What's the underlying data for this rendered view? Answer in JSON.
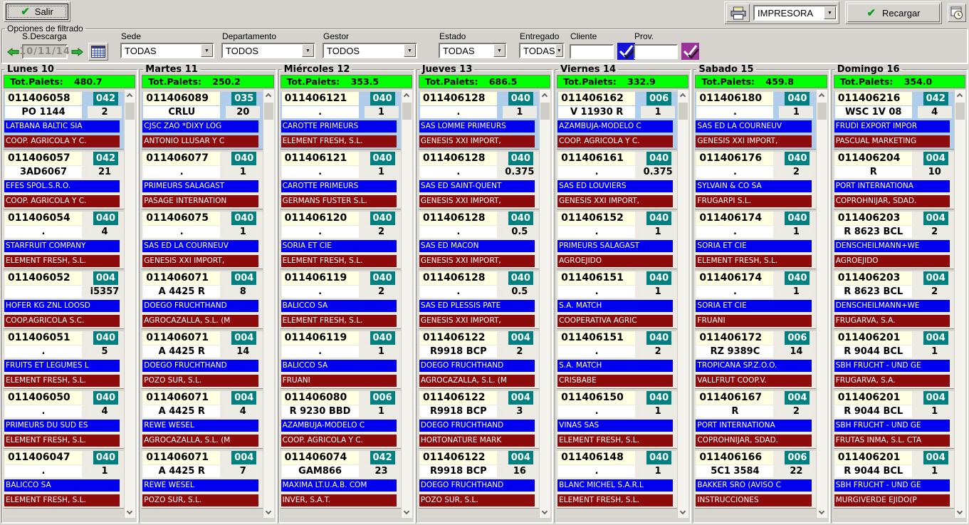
{
  "toolbar": {
    "salir": "Salir",
    "printer_value": "IMPRESORA",
    "recargar": "Recargar"
  },
  "filters": {
    "title": "Opciones de filtrado",
    "sdescarga_label": "S.Descarga",
    "sdescarga_value": "10/11/14",
    "sede_label": "Sede",
    "sede_value": "TODAS",
    "departamento_label": "Departamento",
    "departamento_value": "TODOS",
    "gestor_label": "Gestor",
    "gestor_value": "TODOS",
    "estado_label": "Estado",
    "estado_value": "TODAS",
    "entregado_label": "Entregado",
    "entregado_value": "TODAS",
    "cliente_label": "Cliente",
    "cliente_value": "",
    "prov_label": "Prov.",
    "prov_value": ""
  },
  "totals_label": "Tot.Palets:",
  "icons": {
    "salir": "green-checkmark",
    "recargar": "green-checkmark",
    "print": "printer",
    "schedule": "clock-window",
    "prev_day": "green-arrow-left",
    "next_day": "green-arrow-right",
    "calendar": "calendar-grid",
    "cliente_filter": "double-check-blue",
    "prov_filter": "double-check-purple",
    "combo": "chevron-down",
    "scroll_up": "chevron-up",
    "scroll_down": "chevron-down"
  },
  "colors": {
    "window_gray": "#d6d3ce",
    "total_green": "#00ff00",
    "badge_teal": "#008080",
    "client_blue": "#0000ee",
    "supplier_maroon": "#8e0b0b",
    "highlight_blue": "#b0cdec",
    "order_cream": "#ffffe1"
  },
  "columns": [
    {
      "day": "Lunes 10",
      "total": "480.7",
      "cards": [
        {
          "order": "011406058",
          "badge": "042",
          "code": "PO 1144",
          "qty": "2",
          "client": "LATBANA BALTIC SIA",
          "supplier": "COOP. AGRICOLA Y C.",
          "hl": true
        },
        {
          "order": "011406057",
          "badge": "042",
          "code": "3AD6067",
          "qty": "21",
          "client": "EFES SPOL.S.R.O.",
          "supplier": "COOP. AGRICOLA Y C.",
          "hl": false
        },
        {
          "order": "011406054",
          "badge": "040",
          "code": ".",
          "qty": "4",
          "client": "STARFRUIT COMPANY",
          "supplier": "ELEMENT FRESH, S.L.",
          "hl": false
        },
        {
          "order": "011406052",
          "badge": "004",
          "code": "",
          "qty": "i5357",
          "client": "HOFER KG ZNL LOOSD",
          "supplier": "COOP.AGRICOLA S.C.",
          "hl": false
        },
        {
          "order": "011406051",
          "badge": "040",
          "code": ".",
          "qty": "5",
          "client": "FRUITS ET LEGUMES L",
          "supplier": "ELEMENT FRESH, S.L.",
          "hl": false
        },
        {
          "order": "011406050",
          "badge": "040",
          "code": ".",
          "qty": "4",
          "client": "PRIMEURS DU SUD ES",
          "supplier": "ELEMENT FRESH, S.L.",
          "hl": false
        },
        {
          "order": "011406047",
          "badge": "040",
          "code": ".",
          "qty": "1",
          "client": "BALICCO SA",
          "supplier": "ELEMENT FRESH, S.L.",
          "hl": false
        }
      ]
    },
    {
      "day": "Martes 11",
      "total": "250.2",
      "cards": [
        {
          "order": "011406089",
          "badge": "035",
          "code": "CRLU",
          "qty": "20",
          "client": "CJSC ZAO *DIXY LOG",
          "supplier": "ANTONIO LLUSAR Y C",
          "hl": true
        },
        {
          "order": "011406077",
          "badge": "040",
          "code": ".",
          "qty": "1",
          "client": "PRIMEURS SALAGAST",
          "supplier": "PASAGE INTERNATION",
          "hl": false
        },
        {
          "order": "011406075",
          "badge": "040",
          "code": ".",
          "qty": "1",
          "client": "SAS ED LA COURNEUV",
          "supplier": "GENESIS XXI IMPORT,",
          "hl": false
        },
        {
          "order": "011406071",
          "badge": "004",
          "code": "A 4425 R",
          "qty": "8",
          "client": "DOEGO FRUCHTHAND",
          "supplier": "AGROCAZALLA, S.L. (M",
          "hl": false
        },
        {
          "order": "011406071",
          "badge": "004",
          "code": "A 4425 R",
          "qty": "14",
          "client": "DOEGO FRUCHTHAND",
          "supplier": "POZO SUR, S.L.",
          "hl": false
        },
        {
          "order": "011406071",
          "badge": "004",
          "code": "A 4425 R",
          "qty": "4",
          "client": "REWE WESEL",
          "supplier": "AGROCAZALLA, S.L. (M",
          "hl": false
        },
        {
          "order": "011406071",
          "badge": "004",
          "code": "A 4425 R",
          "qty": "7",
          "client": "REWE WESEL",
          "supplier": "POZO SUR, S.L.",
          "hl": false
        }
      ]
    },
    {
      "day": "Miércoles 12",
      "total": "353.5",
      "cards": [
        {
          "order": "011406121",
          "badge": "040",
          "code": ".",
          "qty": "1",
          "client": "CAROTTE PRIMEURS",
          "supplier": "ELEMENT FRESH, S.L.",
          "hl": true
        },
        {
          "order": "011406121",
          "badge": "040",
          "code": ".",
          "qty": "1",
          "client": "CAROTTE PRIMEURS",
          "supplier": "GERMANS FUSTER S.L.",
          "hl": false
        },
        {
          "order": "011406120",
          "badge": "040",
          "code": ".",
          "qty": "2",
          "client": "SORIA ET CIE",
          "supplier": "ELEMENT FRESH, S.L.",
          "hl": false
        },
        {
          "order": "011406119",
          "badge": "040",
          "code": ".",
          "qty": "2",
          "client": "BALICCO SA",
          "supplier": "ELEMENT FRESH, S.L.",
          "hl": false
        },
        {
          "order": "011406119",
          "badge": "040",
          "code": ".",
          "qty": "1",
          "client": "BALICCO SA",
          "supplier": "FRUANI",
          "hl": false
        },
        {
          "order": "011406080",
          "badge": "006",
          "code": "R 9230 BBD",
          "qty": "1",
          "client": "AZAMBUJA-MODELO C",
          "supplier": "COOP. AGRICOLA Y C.",
          "hl": false
        },
        {
          "order": "011406074",
          "badge": "042",
          "code": "GAM866",
          "qty": "23",
          "client": "MAXIMA LT.U.A.B. COM",
          "supplier": "INVER, S.A.T.",
          "hl": false
        }
      ]
    },
    {
      "day": "Jueves 13",
      "total": "686.5",
      "cards": [
        {
          "order": "011406128",
          "badge": "040",
          "code": ".",
          "qty": "1",
          "client": "SAS LOMME PRIMEURS",
          "supplier": "GENESIS XXI IMPORT,",
          "hl": true
        },
        {
          "order": "011406128",
          "badge": "040",
          "code": ".",
          "qty": "0.375",
          "client": "SAS ED SAINT-QUENT",
          "supplier": "GENESIS XXI IMPORT,",
          "hl": false
        },
        {
          "order": "011406128",
          "badge": "040",
          "code": ".",
          "qty": "0.5",
          "client": "SAS ED MACON",
          "supplier": "GENESIS XXI IMPORT,",
          "hl": false
        },
        {
          "order": "011406128",
          "badge": "040",
          "code": ".",
          "qty": "0.5",
          "client": "SAS ED PLESSIS PATE",
          "supplier": "GENESIS XXI IMPORT,",
          "hl": false
        },
        {
          "order": "011406122",
          "badge": "004",
          "code": "R9918 BCP",
          "qty": "2",
          "client": "DOEGO FRUCHTHAND",
          "supplier": "AGROCAZALLA, S.L. (M",
          "hl": false
        },
        {
          "order": "011406122",
          "badge": "004",
          "code": "R9918 BCP",
          "qty": "3",
          "client": "DOEGO FRUCHTHAND",
          "supplier": "HORTONATURE MARK",
          "hl": false
        },
        {
          "order": "011406122",
          "badge": "004",
          "code": "R9918 BCP",
          "qty": "16",
          "client": "DOEGO FRUCHTHAND",
          "supplier": "POZO SUR, S.L.",
          "hl": false
        }
      ]
    },
    {
      "day": "Viernes 14",
      "total": "332.9",
      "cards": [
        {
          "order": "011406162",
          "badge": "006",
          "code": "V 11930 R",
          "qty": "1",
          "client": "AZAMBUJA-MODELO C",
          "supplier": "COOP. AGRICOLA Y C.",
          "hl": true
        },
        {
          "order": "011406161",
          "badge": "040",
          "code": ".",
          "qty": "0.375",
          "client": "SAS ED LOUVIERS",
          "supplier": "GENESIS XXI IMPORT,",
          "hl": false
        },
        {
          "order": "011406152",
          "badge": "040",
          "code": ".",
          "qty": "1",
          "client": "PRIMEURS SALAGAST",
          "supplier": "AGROEJIDO",
          "hl": false
        },
        {
          "order": "011406151",
          "badge": "040",
          "code": ".",
          "qty": "1",
          "client": "S.A. MATCH",
          "supplier": "COOPERATIVA AGRIC",
          "hl": false
        },
        {
          "order": "011406151",
          "badge": "040",
          "code": ".",
          "qty": "2",
          "client": "S.A. MATCH",
          "supplier": "CRISBABE",
          "hl": false
        },
        {
          "order": "011406150",
          "badge": "040",
          "code": ".",
          "qty": "1",
          "client": "VINAS SAS",
          "supplier": "ELEMENT FRESH, S.L.",
          "hl": false
        },
        {
          "order": "011406148",
          "badge": "040",
          "code": ".",
          "qty": "1",
          "client": "BLANC MICHEL S.A.R.L",
          "supplier": "ELEMENT FRESH, S.L.",
          "hl": false
        }
      ]
    },
    {
      "day": "Sabado 15",
      "total": "459.8",
      "cards": [
        {
          "order": "011406180",
          "badge": "040",
          "code": ".",
          "qty": "1",
          "client": "SAS ED LA COURNEUV",
          "supplier": "GENESIS XXI IMPORT,",
          "hl": true
        },
        {
          "order": "011406176",
          "badge": "040",
          "code": ".",
          "qty": "2",
          "client": "SYLVAIN & CO SA",
          "supplier": "FRUGARPI S.L.",
          "hl": false
        },
        {
          "order": "011406174",
          "badge": "040",
          "code": ".",
          "qty": "1",
          "client": "SORIA ET CIE",
          "supplier": "ELEMENT FRESH, S.L.",
          "hl": false
        },
        {
          "order": "011406174",
          "badge": "040",
          "code": ".",
          "qty": "1",
          "client": "SORIA ET CIE",
          "supplier": "FRUANI",
          "hl": false
        },
        {
          "order": "011406172",
          "badge": "006",
          "code": "RZ 9389C",
          "qty": "14",
          "client": "TROPICANA SP.Z.O.O.",
          "supplier": "VALLFRUT COOP.V.",
          "hl": false
        },
        {
          "order": "011406167",
          "badge": "004",
          "code": "R",
          "qty": "2",
          "client": "PORT INTERNATIONA",
          "supplier": "COPROHNIJAR, SDAD.",
          "hl": false
        },
        {
          "order": "011406166",
          "badge": "006",
          "code": "5C1 3584",
          "qty": "22",
          "client": "BAKKER SRO (AVISO C",
          "supplier": "INSTRUCCIONES",
          "hl": false
        }
      ]
    },
    {
      "day": "Domingo 16",
      "total": "354.0",
      "cards": [
        {
          "order": "011406216",
          "badge": "042",
          "code": "WSC 1V 08",
          "qty": "4",
          "client": "FRUDI EXPORT IMPOR",
          "supplier": "PASCUAL MARKETING",
          "hl": true
        },
        {
          "order": "011406204",
          "badge": "004",
          "code": "R",
          "qty": "10",
          "client": "PORT INTERNATIONA",
          "supplier": "COPROHNIJAR, SDAD.",
          "hl": false
        },
        {
          "order": "011406203",
          "badge": "004",
          "code": "R 8623 BCL",
          "qty": "2",
          "client": "DENSCHEILMANN+WE",
          "supplier": "AGROEJIDO",
          "hl": false
        },
        {
          "order": "011406203",
          "badge": "004",
          "code": "R 8623 BCL",
          "qty": "2",
          "client": "DENSCHEILMANN+WE",
          "supplier": "FRUGARVA, S.A.",
          "hl": false
        },
        {
          "order": "011406201",
          "badge": "004",
          "code": "R 9044 BCL",
          "qty": "1",
          "client": "SBH FRUCHT - UND GE",
          "supplier": "FRUGARVA, S.A.",
          "hl": false
        },
        {
          "order": "011406201",
          "badge": "004",
          "code": "R 9044 BCL",
          "qty": "1",
          "client": "SBH FRUCHT - UND GE",
          "supplier": "FRUTAS INMA, S.L. CTA",
          "hl": false
        },
        {
          "order": "011406201",
          "badge": "004",
          "code": "R 9044 BCL",
          "qty": "1",
          "client": "SBH FRUCHT - UND GE",
          "supplier": "MURGIVERDE EJIDO(P",
          "hl": false
        }
      ]
    }
  ]
}
